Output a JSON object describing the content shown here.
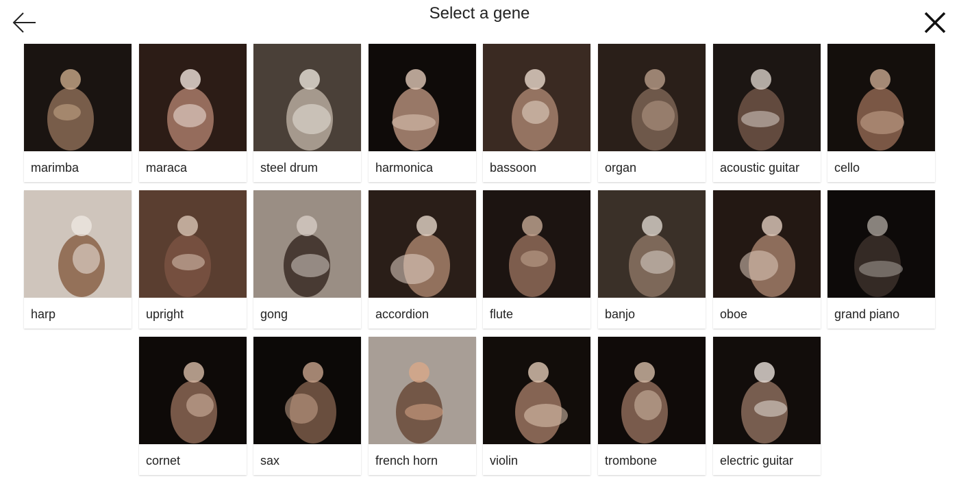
{
  "header": {
    "title": "Select a gene",
    "back_icon": "arrow-left-icon",
    "close_icon": "close-icon"
  },
  "genes": [
    {
      "label": "marimba",
      "bg": "#1a1411",
      "accent": "#8a6a55",
      "glow": "#c9a98a"
    },
    {
      "label": "maraca",
      "bg": "#2c1c16",
      "accent": "#a87a68",
      "glow": "#f0e4dc"
    },
    {
      "label": "steel drum",
      "bg": "#4a4038",
      "accent": "#b5a99c",
      "glow": "#e8e2da"
    },
    {
      "label": "harmonica",
      "bg": "#0f0b09",
      "accent": "#b08c78",
      "glow": "#e0c8b8"
    },
    {
      "label": "bassoon",
      "bg": "#3a2a22",
      "accent": "#a4806c",
      "glow": "#e8d8cc"
    },
    {
      "label": "organ",
      "bg": "#2a1f19",
      "accent": "#7a6354",
      "glow": "#b89c88"
    },
    {
      "label": "acoustic guitar",
      "bg": "#1c1613",
      "accent": "#6e5446",
      "glow": "#d8d0c8"
    },
    {
      "label": "cello",
      "bg": "#140f0c",
      "accent": "#8c6450",
      "glow": "#c8a890"
    },
    {
      "label": "harp",
      "bg": "#cfc5bc",
      "accent": "#8a6248",
      "glow": "#ece6e0"
    },
    {
      "label": "upright",
      "bg": "#5a3e30",
      "accent": "#7a5242",
      "glow": "#d8c4b4"
    },
    {
      "label": "gong",
      "bg": "#9a8e84",
      "accent": "#3a2c24",
      "glow": "#d6ccc4"
    },
    {
      "label": "accordion",
      "bg": "#2a1e18",
      "accent": "#a4806a",
      "glow": "#e4d4c8"
    },
    {
      "label": "flute",
      "bg": "#1c1411",
      "accent": "#8e6a58",
      "glow": "#c4a894"
    },
    {
      "label": "banjo",
      "bg": "#3a3028",
      "accent": "#8a7262",
      "glow": "#dcd4cc"
    },
    {
      "label": "oboe",
      "bg": "#231813",
      "accent": "#a07c68",
      "glow": "#e0ccbe"
    },
    {
      "label": "grand piano",
      "bg": "#0d0a09",
      "accent": "#3c302a",
      "glow": "#a8a09a"
    },
    {
      "label": "cornet",
      "bg": "#0e0a08",
      "accent": "#8a6654",
      "glow": "#d8bca8"
    },
    {
      "label": "sax",
      "bg": "#0c0907",
      "accent": "#7a5a48",
      "glow": "#c8a48c"
    },
    {
      "label": "french horn",
      "bg": "#a89e96",
      "accent": "#6a4a3a",
      "glow": "#d8a888"
    },
    {
      "label": "violin",
      "bg": "#120d0a",
      "accent": "#9a7460",
      "glow": "#e0c8b4"
    },
    {
      "label": "trombone",
      "bg": "#100b09",
      "accent": "#8c6a58",
      "glow": "#d4bca8"
    },
    {
      "label": "electric guitar",
      "bg": "#120d0b",
      "accent": "#8a6c5c",
      "glow": "#e8e0da"
    }
  ]
}
